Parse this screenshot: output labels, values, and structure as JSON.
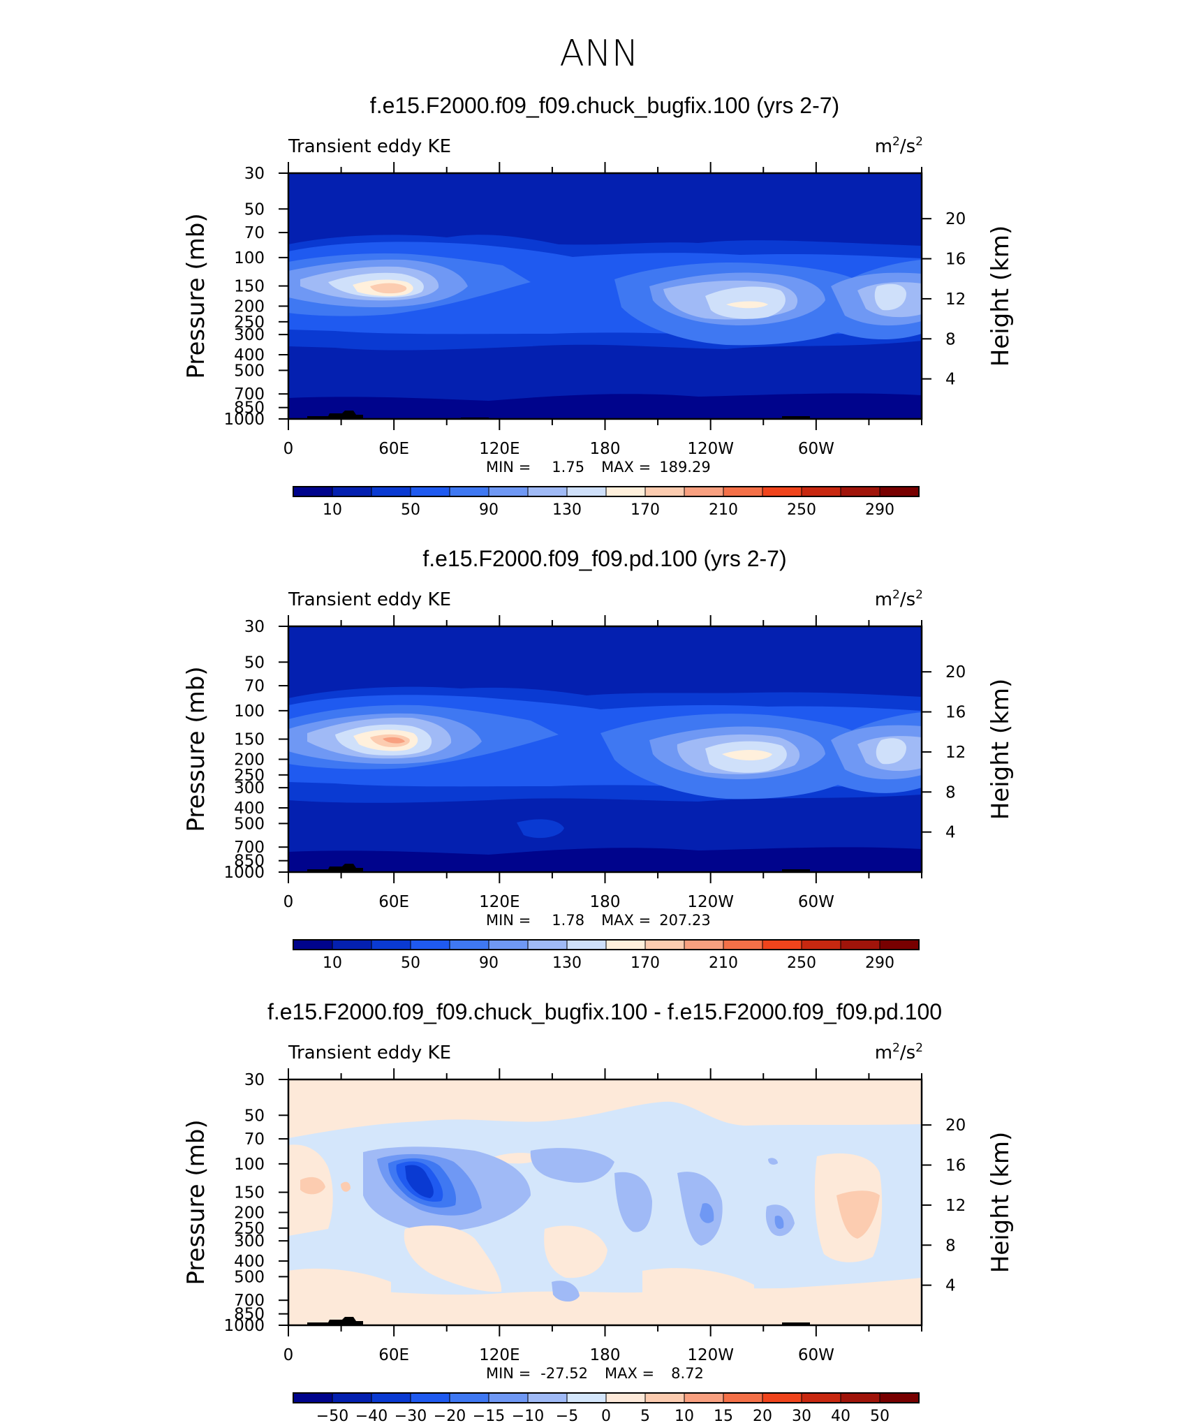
{
  "main_title": "ANN",
  "chart_data": [
    {
      "type": "heatmap",
      "title": "f.e15.F2000.f09_f09.chuck_bugfix.100 (yrs 2-7)",
      "variable": "Transient eddy KE",
      "units_base": "m",
      "units_exp1": "2",
      "units_sep": "/s",
      "units_exp2": "2",
      "xlabel": "",
      "ylabel": "Pressure (mb)",
      "ylabel_right": "Height (km)",
      "xticks": [
        "0",
        "60E",
        "120E",
        "180",
        "120W",
        "60W"
      ],
      "yticks": [
        "30",
        "50",
        "70",
        "100",
        "150",
        "200",
        "250",
        "300",
        "400",
        "500",
        "700",
        "850",
        "1000"
      ],
      "yticks_right": [
        "20",
        "16",
        "12",
        "8",
        "4"
      ],
      "min_label": "MIN =",
      "min_value": "1.75",
      "max_label": "MAX =",
      "max_value": "189.29",
      "colorbar_labels": [
        "10",
        "50",
        "90",
        "130",
        "170",
        "210",
        "250",
        "290"
      ],
      "colorbar_colors": [
        "#00048c",
        "#0420b0",
        "#0a3ad2",
        "#1f5af0",
        "#3f78f2",
        "#6f98f4",
        "#a0baf6",
        "#cfe0fa",
        "#fff0dc",
        "#fcccb0",
        "#f8a080",
        "#f47048",
        "#f0441c",
        "#c82810",
        "#a0140a",
        "#780000"
      ],
      "features": [
        {
          "lon": 63,
          "lev": 150,
          "value": 185
        },
        {
          "lon": 255,
          "lev": 200,
          "value": 170
        },
        {
          "lon": 340,
          "lev": 180,
          "value": 140
        }
      ]
    },
    {
      "type": "heatmap",
      "title": "f.e15.F2000.f09_f09.pd.100 (yrs 2-7)",
      "variable": "Transient eddy KE",
      "units_base": "m",
      "units_exp1": "2",
      "units_sep": "/s",
      "units_exp2": "2",
      "xlabel": "",
      "ylabel": "Pressure (mb)",
      "ylabel_right": "Height (km)",
      "xticks": [
        "0",
        "60E",
        "120E",
        "180",
        "120W",
        "60W"
      ],
      "yticks": [
        "30",
        "50",
        "70",
        "100",
        "150",
        "200",
        "250",
        "300",
        "400",
        "500",
        "700",
        "850",
        "1000"
      ],
      "yticks_right": [
        "20",
        "16",
        "12",
        "8",
        "4"
      ],
      "min_label": "MIN =",
      "min_value": "1.78",
      "max_label": "MAX =",
      "max_value": "207.23",
      "colorbar_labels": [
        "10",
        "50",
        "90",
        "130",
        "170",
        "210",
        "250",
        "290"
      ],
      "colorbar_colors": [
        "#00048c",
        "#0420b0",
        "#0a3ad2",
        "#1f5af0",
        "#3f78f2",
        "#6f98f4",
        "#a0baf6",
        "#cfe0fa",
        "#fff0dc",
        "#fcccb0",
        "#f8a080",
        "#f47048",
        "#f0441c",
        "#c82810",
        "#a0140a",
        "#780000"
      ],
      "features": [
        {
          "lon": 63,
          "lev": 150,
          "value": 205
        },
        {
          "lon": 255,
          "lev": 200,
          "value": 170
        },
        {
          "lon": 340,
          "lev": 180,
          "value": 145
        }
      ]
    },
    {
      "type": "heatmap",
      "title": "f.e15.F2000.f09_f09.chuck_bugfix.100 - f.e15.F2000.f09_f09.pd.100",
      "variable": "Transient eddy KE",
      "units_base": "m",
      "units_exp1": "2",
      "units_sep": "/s",
      "units_exp2": "2",
      "xlabel": "",
      "ylabel": "Pressure (mb)",
      "ylabel_right": "Height (km)",
      "xticks": [
        "0",
        "60E",
        "120E",
        "180",
        "120W",
        "60W"
      ],
      "yticks": [
        "30",
        "50",
        "70",
        "100",
        "150",
        "200",
        "250",
        "300",
        "400",
        "500",
        "700",
        "850",
        "1000"
      ],
      "yticks_right": [
        "20",
        "16",
        "12",
        "8",
        "4"
      ],
      "min_label": "MIN =",
      "min_value": "-27.52",
      "max_label": "MAX =",
      "max_value": "8.72",
      "colorbar_labels": [
        "−50",
        "−40",
        "−30",
        "−20",
        "−15",
        "−10",
        "−5",
        "0",
        "5",
        "10",
        "15",
        "20",
        "30",
        "40",
        "50"
      ],
      "colorbar_colors": [
        "#00048c",
        "#0420b0",
        "#0a3ad2",
        "#1f5af0",
        "#3f78f2",
        "#6f98f4",
        "#a0baf6",
        "#d4e6fb",
        "#fde9d9",
        "#fcccb0",
        "#f8a080",
        "#f47048",
        "#f0441c",
        "#c82810",
        "#a0140a",
        "#780000"
      ],
      "features": [
        {
          "lon": 73,
          "lev": 150,
          "value": -27.52
        },
        {
          "lon": 320,
          "lev": 180,
          "value": 8.72
        }
      ]
    }
  ]
}
